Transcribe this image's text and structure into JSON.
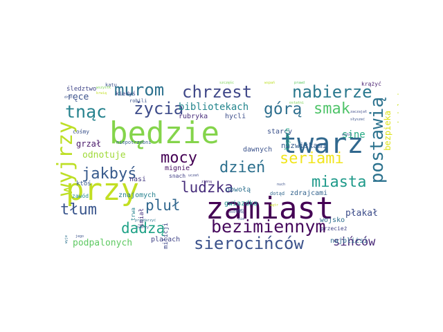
{
  "words": [
    {
      "text": "zamiast",
      "color": "#440154"
    },
    {
      "text": "będzie",
      "color": "#84d44b"
    },
    {
      "text": "twarz",
      "color": "#31688e"
    },
    {
      "text": "przy",
      "color": "#c2df23"
    },
    {
      "text": "wyjrzy",
      "color": "#bddf26"
    },
    {
      "text": "postawią",
      "color": "#2c728e"
    },
    {
      "text": "bezimiennym",
      "color": "#46085c"
    },
    {
      "text": "sierocińców",
      "color": "#3b528b"
    },
    {
      "text": "murom",
      "color": "#2c718e"
    },
    {
      "text": "chrzest",
      "color": "#3f4788"
    },
    {
      "text": "nabierze",
      "color": "#2a788e"
    },
    {
      "text": "tnąc",
      "color": "#26828e"
    },
    {
      "text": "życia",
      "color": "#3e4c8a"
    },
    {
      "text": "górą",
      "color": "#2e6f8e"
    },
    {
      "text": "smak",
      "color": "#50c46a"
    },
    {
      "text": "jakbyś",
      "color": "#375a8c"
    },
    {
      "text": "mocy",
      "color": "#440154"
    },
    {
      "text": "dzień",
      "color": "#2d708e"
    },
    {
      "text": "seriami",
      "color": "#f1e51d"
    },
    {
      "text": "miasta",
      "color": "#1f9a8a"
    },
    {
      "text": "ludzka",
      "color": "#472d7b"
    },
    {
      "text": "pluł",
      "color": "#31678e"
    },
    {
      "text": "tłum",
      "color": "#39558c"
    },
    {
      "text": "dadzą",
      "color": "#1fa287"
    },
    {
      "text": "bibliotekach",
      "color": "#24868e"
    },
    {
      "text": "sine",
      "color": "#24aa83"
    },
    {
      "text": "płakał",
      "color": "#3d4d8a"
    },
    {
      "text": "sińców",
      "color": "#482878"
    },
    {
      "text": "bezpieka",
      "color": "#dde318"
    },
    {
      "text": "podpalonych",
      "color": "#5ec962"
    },
    {
      "text": "odnotuje",
      "color": "#a0da39"
    },
    {
      "text": "ręce",
      "color": "#3b528b"
    },
    {
      "text": "śledztwo",
      "color": "#404688"
    },
    {
      "text": "rubryka",
      "color": "#472c7a"
    },
    {
      "text": "hycli",
      "color": "#3d4e8a"
    },
    {
      "text": "starcy",
      "color": "#3b518b"
    },
    {
      "text": "grzał",
      "color": "#48186a"
    },
    {
      "text": "nazwiskami",
      "color": "#365c8d"
    },
    {
      "text": "łapach",
      "color": "#22a884"
    },
    {
      "text": "dawnych",
      "color": "#3b528b"
    },
    {
      "text": "mignie",
      "color": "#471063"
    },
    {
      "text": "nasi",
      "color": "#443a83"
    },
    {
      "text": "znajomych",
      "color": "#26818e"
    },
    {
      "text": "gwiazdka",
      "color": "#20928c"
    },
    {
      "text": "zdrajcami",
      "color": "#33638d"
    },
    {
      "text": "najbliżsi",
      "color": "#2f6c8e"
    },
    {
      "text": "wojsko",
      "color": "#2e6e8e"
    },
    {
      "text": "placach",
      "color": "#414487"
    },
    {
      "text": "milicji",
      "color": "#3f4889"
    },
    {
      "text": "śmiał",
      "color": "#46327e"
    },
    {
      "text": "obwołą",
      "color": "#2d708e"
    },
    {
      "text": "trwa",
      "color": "#25838e"
    },
    {
      "text": "snach",
      "color": "#423f85"
    },
    {
      "text": "kiedyś",
      "color": "#3e4989"
    },
    {
      "text": "robili",
      "color": "#3b528b"
    },
    {
      "text": "cośmy",
      "color": "#3b528b"
    },
    {
      "text": "ktoś",
      "color": "#375b8d"
    },
    {
      "text": "zawód",
      "color": "#228c8d"
    },
    {
      "text": "niepotrzebni",
      "color": "#355f8d"
    },
    {
      "text": "przedszkolach",
      "color": "#c8e020"
    },
    {
      "text": "krążyć",
      "color": "#481f70"
    },
    {
      "text": "przecież",
      "color": "#404387"
    },
    {
      "text": "katu",
      "color": "#3b528b"
    },
    {
      "text": "dotąd",
      "color": "#31678e"
    },
    {
      "text": "wspań",
      "color": "#bddf26"
    },
    {
      "text": "prawd",
      "color": "#5ec962"
    },
    {
      "text": "uczeń",
      "color": "#3f4788"
    },
    {
      "text": "nuch",
      "color": "#3b518b"
    },
    {
      "text": "zimną",
      "color": "#472d7b"
    },
    {
      "text": "zaczajał",
      "color": "#3e4c8a"
    },
    {
      "text": "słyszeć",
      "color": "#3b528b"
    },
    {
      "text": "widzi",
      "color": "#3b528b"
    },
    {
      "text": "wątr",
      "color": "#c8e020"
    },
    {
      "text": "jego",
      "color": "#3b528b"
    },
    {
      "text": "przydarzyć",
      "color": "#2c718e"
    },
    {
      "text": "twarzy",
      "color": "#3b528b"
    },
    {
      "text": "wyje",
      "color": "#2c718e"
    },
    {
      "text": "ujawn",
      "color": "#3b528b"
    },
    {
      "text": "szczęśc",
      "color": "#7ad151"
    },
    {
      "text": "wszystk",
      "color": "#7ad151"
    },
    {
      "text": "drut",
      "color": "#3b528b"
    },
    {
      "text": "krwią",
      "color": "#c2df23"
    },
    {
      "text": "ostatni",
      "color": "#7ad151"
    },
    {
      "text": "zostaną",
      "color": "#3b528b"
    },
    {
      "text": "nie",
      "color": "#3b528b"
    }
  ]
}
